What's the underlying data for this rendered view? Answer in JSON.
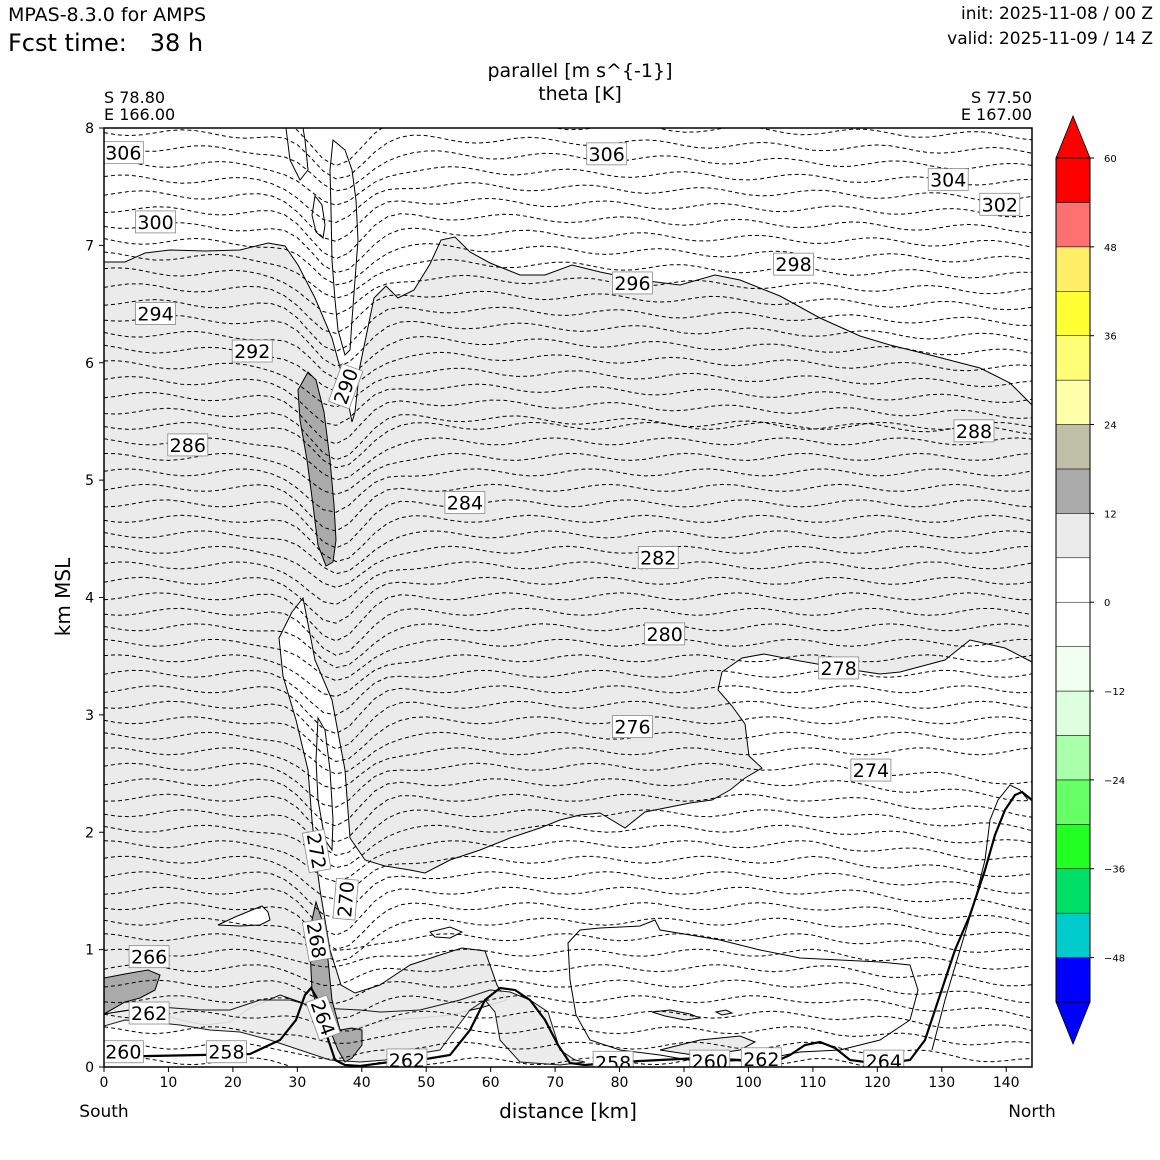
{
  "header": {
    "model": "MPAS-8.3.0 for AMPS",
    "fcst_label": "Fcst time:",
    "fcst_value": "38 h",
    "init": "init: 2025-11-08 / 00 Z",
    "valid": "valid: 2025-11-09 / 14 Z"
  },
  "endpoints": {
    "left_lat": "S 78.80",
    "left_lon": "E 166.00",
    "right_lat": "S 77.50",
    "right_lon": "E 167.00",
    "left_dir": "South",
    "right_dir": "North"
  },
  "chart_data": {
    "type": "contour",
    "title": "parallel [m s^{-1}]",
    "subtitle": "theta [K]",
    "xlabel": "distance [km]",
    "ylabel": "km MSL",
    "xlim": [
      0,
      144
    ],
    "ylim": [
      0,
      8
    ],
    "xticks": [
      0,
      10,
      20,
      30,
      40,
      50,
      60,
      70,
      80,
      90,
      100,
      110,
      120,
      130,
      140
    ],
    "yticks": [
      0,
      1,
      2,
      3,
      4,
      5,
      6,
      7,
      8
    ],
    "theta_labels": [
      {
        "x": 3,
        "y": 7.79,
        "v": "306"
      },
      {
        "x": 78,
        "y": 7.78,
        "v": "306"
      },
      {
        "x": 131,
        "y": 7.56,
        "v": "304"
      },
      {
        "x": 139,
        "y": 7.35,
        "v": "302"
      },
      {
        "x": 8,
        "y": 7.2,
        "v": "300"
      },
      {
        "x": 107,
        "y": 6.84,
        "v": "298"
      },
      {
        "x": 82,
        "y": 6.68,
        "v": "296"
      },
      {
        "x": 8,
        "y": 6.42,
        "v": "294"
      },
      {
        "x": 23,
        "y": 6.1,
        "v": "292"
      },
      {
        "x": 37.5,
        "y": 5.8,
        "v": "290",
        "rot": -70
      },
      {
        "x": 13,
        "y": 5.3,
        "v": "286"
      },
      {
        "x": 135,
        "y": 5.42,
        "v": "288"
      },
      {
        "x": 56,
        "y": 4.81,
        "v": "284"
      },
      {
        "x": 86,
        "y": 4.34,
        "v": "282"
      },
      {
        "x": 87,
        "y": 3.69,
        "v": "280"
      },
      {
        "x": 114,
        "y": 3.4,
        "v": "278"
      },
      {
        "x": 82,
        "y": 2.9,
        "v": "276"
      },
      {
        "x": 119,
        "y": 2.53,
        "v": "274"
      },
      {
        "x": 33,
        "y": 1.84,
        "v": "272",
        "rot": 80
      },
      {
        "x": 37.5,
        "y": 1.43,
        "v": "270",
        "rot": -85
      },
      {
        "x": 33,
        "y": 1.08,
        "v": "268",
        "rot": 80
      },
      {
        "x": 7,
        "y": 0.94,
        "v": "266"
      },
      {
        "x": 34,
        "y": 0.42,
        "v": "264",
        "rot": 70
      },
      {
        "x": 7,
        "y": 0.46,
        "v": "262"
      },
      {
        "x": 47,
        "y": 0.06,
        "v": "262"
      },
      {
        "x": 3,
        "y": 0.13,
        "v": "260"
      },
      {
        "x": 94,
        "y": 0.05,
        "v": "260"
      },
      {
        "x": 102,
        "y": 0.07,
        "v": "262"
      },
      {
        "x": 19,
        "y": 0.13,
        "v": "258"
      },
      {
        "x": 79,
        "y": 0.04,
        "v": "258"
      },
      {
        "x": 121,
        "y": 0.05,
        "v": "264"
      }
    ],
    "colorbar": {
      "ticks": [
        "60",
        "48",
        "36",
        "24",
        "12",
        "0",
        "−12",
        "−24",
        "−36",
        "−48"
      ],
      "colors": [
        "#0000ff",
        "#00cccc",
        "#00e066",
        "#22ff22",
        "#66ff66",
        "#aaffaa",
        "#ddffdd",
        "#f0fff0",
        "#ffffff",
        "#ffffff",
        "#ebebeb",
        "#aaaaaa",
        "#c0c0a8",
        "#ffffaa",
        "#ffff77",
        "#ffff33",
        "#ffee66",
        "#ff7070",
        "#ff0000"
      ],
      "under": "#0000ff",
      "over": "#ff0000"
    }
  }
}
